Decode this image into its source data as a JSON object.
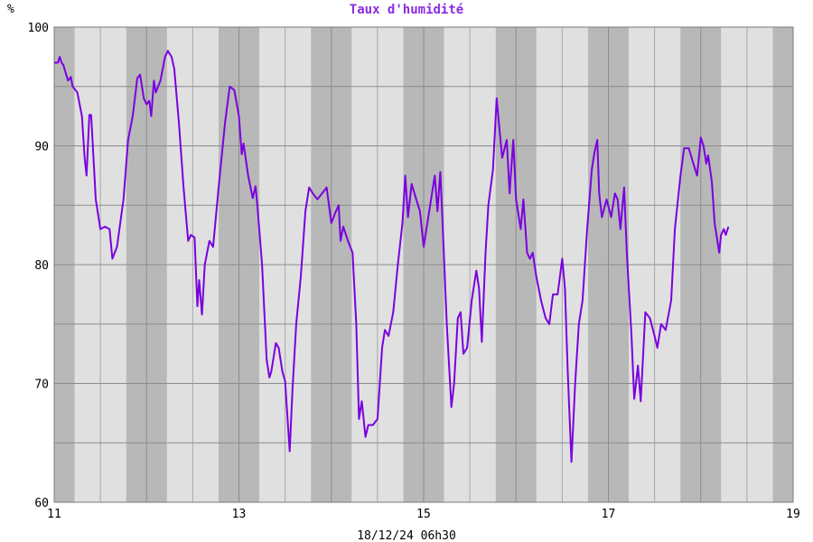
{
  "chart_data": {
    "type": "line",
    "title": "Taux d'humidité",
    "ylabel": "%",
    "footer": "18/12/24 06h30",
    "xlim": [
      11,
      19
    ],
    "ylim": [
      60,
      100
    ],
    "x_ticks": [
      11,
      13,
      15,
      17,
      19
    ],
    "y_ticks": [
      60,
      70,
      80,
      90,
      100
    ],
    "grid": true,
    "line_color": "#7a00e0",
    "night_band_color": "#b8b8b8",
    "day_band_color": "#e0e0e0",
    "night_bands": [
      [
        11.0,
        11.22
      ],
      [
        11.78,
        12.22
      ],
      [
        12.78,
        13.22
      ],
      [
        13.78,
        14.22
      ],
      [
        14.78,
        15.22
      ],
      [
        15.78,
        16.22
      ],
      [
        16.78,
        17.22
      ],
      [
        17.78,
        18.22
      ],
      [
        18.78,
        19.0
      ]
    ],
    "series": [
      {
        "values": [
          [
            11.0,
            97.0
          ],
          [
            11.04,
            97.0
          ],
          [
            11.06,
            97.5
          ],
          [
            11.08,
            97.0
          ],
          [
            11.1,
            96.8
          ],
          [
            11.13,
            96.0
          ],
          [
            11.15,
            95.5
          ],
          [
            11.18,
            95.8
          ],
          [
            11.2,
            95.0
          ],
          [
            11.25,
            94.5
          ],
          [
            11.3,
            92.5
          ],
          [
            11.33,
            89.0
          ],
          [
            11.35,
            87.5
          ],
          [
            11.38,
            92.6
          ],
          [
            11.4,
            92.6
          ],
          [
            11.45,
            85.5
          ],
          [
            11.5,
            83.0
          ],
          [
            11.55,
            83.2
          ],
          [
            11.6,
            83.0
          ],
          [
            11.63,
            80.5
          ],
          [
            11.68,
            81.5
          ],
          [
            11.75,
            85.5
          ],
          [
            11.8,
            90.5
          ],
          [
            11.85,
            92.5
          ],
          [
            11.9,
            95.7
          ],
          [
            11.93,
            96.0
          ],
          [
            11.97,
            94.0
          ],
          [
            12.0,
            93.5
          ],
          [
            12.03,
            93.8
          ],
          [
            12.05,
            92.5
          ],
          [
            12.08,
            95.5
          ],
          [
            12.1,
            94.5
          ],
          [
            12.15,
            95.5
          ],
          [
            12.2,
            97.5
          ],
          [
            12.23,
            98.0
          ],
          [
            12.27,
            97.5
          ],
          [
            12.3,
            96.5
          ],
          [
            12.35,
            92.0
          ],
          [
            12.4,
            86.5
          ],
          [
            12.45,
            82.0
          ],
          [
            12.48,
            82.5
          ],
          [
            12.52,
            82.3
          ],
          [
            12.55,
            76.5
          ],
          [
            12.57,
            78.7
          ],
          [
            12.6,
            75.8
          ],
          [
            12.63,
            80.0
          ],
          [
            12.68,
            82.0
          ],
          [
            12.72,
            81.5
          ],
          [
            12.78,
            86.5
          ],
          [
            12.85,
            92.0
          ],
          [
            12.9,
            95.0
          ],
          [
            12.95,
            94.7
          ],
          [
            13.0,
            92.5
          ],
          [
            13.03,
            89.3
          ],
          [
            13.05,
            90.2
          ],
          [
            13.1,
            87.5
          ],
          [
            13.15,
            85.6
          ],
          [
            13.18,
            86.6
          ],
          [
            13.2,
            85.0
          ],
          [
            13.25,
            80.0
          ],
          [
            13.3,
            72.0
          ],
          [
            13.33,
            70.5
          ],
          [
            13.35,
            71.0
          ],
          [
            13.4,
            73.4
          ],
          [
            13.43,
            73.0
          ],
          [
            13.47,
            71.0
          ],
          [
            13.5,
            70.2
          ],
          [
            13.55,
            64.3
          ],
          [
            13.58,
            69.5
          ],
          [
            13.62,
            75.0
          ],
          [
            13.67,
            79.0
          ],
          [
            13.72,
            84.5
          ],
          [
            13.76,
            86.5
          ],
          [
            13.8,
            86.0
          ],
          [
            13.85,
            85.5
          ],
          [
            13.9,
            86.0
          ],
          [
            13.95,
            86.5
          ],
          [
            14.0,
            83.5
          ],
          [
            14.05,
            84.5
          ],
          [
            14.08,
            85.0
          ],
          [
            14.1,
            82.0
          ],
          [
            14.13,
            83.2
          ],
          [
            14.18,
            82.0
          ],
          [
            14.23,
            81.0
          ],
          [
            14.27,
            75.0
          ],
          [
            14.3,
            67.0
          ],
          [
            14.33,
            68.5
          ],
          [
            14.37,
            65.5
          ],
          [
            14.4,
            66.5
          ],
          [
            14.45,
            66.5
          ],
          [
            14.5,
            67.0
          ],
          [
            14.55,
            73.0
          ],
          [
            14.58,
            74.5
          ],
          [
            14.62,
            74.0
          ],
          [
            14.67,
            76.0
          ],
          [
            14.72,
            80.0
          ],
          [
            14.77,
            83.5
          ],
          [
            14.8,
            87.5
          ],
          [
            14.83,
            84.0
          ],
          [
            14.87,
            86.8
          ],
          [
            14.92,
            85.5
          ],
          [
            14.96,
            84.5
          ],
          [
            15.0,
            81.5
          ],
          [
            15.05,
            84.0
          ],
          [
            15.08,
            85.5
          ],
          [
            15.12,
            87.5
          ],
          [
            15.15,
            84.5
          ],
          [
            15.18,
            87.8
          ],
          [
            15.2,
            84.5
          ],
          [
            15.25,
            75.0
          ],
          [
            15.3,
            68.0
          ],
          [
            15.33,
            70.0
          ],
          [
            15.37,
            75.5
          ],
          [
            15.4,
            76.0
          ],
          [
            15.43,
            72.5
          ],
          [
            15.47,
            73.0
          ],
          [
            15.52,
            77.0
          ],
          [
            15.57,
            79.5
          ],
          [
            15.6,
            78.0
          ],
          [
            15.63,
            73.5
          ],
          [
            15.67,
            81.0
          ],
          [
            15.7,
            85.0
          ],
          [
            15.75,
            88.0
          ],
          [
            15.79,
            94.0
          ],
          [
            15.82,
            91.5
          ],
          [
            15.85,
            89.0
          ],
          [
            15.9,
            90.5
          ],
          [
            15.93,
            86.0
          ],
          [
            15.97,
            90.5
          ],
          [
            16.0,
            85.5
          ],
          [
            16.05,
            83.0
          ],
          [
            16.08,
            85.5
          ],
          [
            16.12,
            81.0
          ],
          [
            16.15,
            80.5
          ],
          [
            16.18,
            81.0
          ],
          [
            16.22,
            79.0
          ],
          [
            16.27,
            77.0
          ],
          [
            16.32,
            75.5
          ],
          [
            16.36,
            75.0
          ],
          [
            16.4,
            77.5
          ],
          [
            16.45,
            77.5
          ],
          [
            16.5,
            80.5
          ],
          [
            16.53,
            78.0
          ],
          [
            16.56,
            71.0
          ],
          [
            16.6,
            63.4
          ],
          [
            16.64,
            70.0
          ],
          [
            16.68,
            75.0
          ],
          [
            16.72,
            77.0
          ],
          [
            16.77,
            83.0
          ],
          [
            16.82,
            88.0
          ],
          [
            16.85,
            89.5
          ],
          [
            16.88,
            90.5
          ],
          [
            16.9,
            86.0
          ],
          [
            16.93,
            84.0
          ],
          [
            16.98,
            85.5
          ],
          [
            17.03,
            84.0
          ],
          [
            17.07,
            86.0
          ],
          [
            17.1,
            85.5
          ],
          [
            17.13,
            83.0
          ],
          [
            17.17,
            86.5
          ],
          [
            17.2,
            81.0
          ],
          [
            17.25,
            74.0
          ],
          [
            17.28,
            68.7
          ],
          [
            17.32,
            71.5
          ],
          [
            17.35,
            68.5
          ],
          [
            17.4,
            76.0
          ],
          [
            17.45,
            75.5
          ],
          [
            17.5,
            74.0
          ],
          [
            17.53,
            73.0
          ],
          [
            17.57,
            75.0
          ],
          [
            17.62,
            74.5
          ],
          [
            17.68,
            77.0
          ],
          [
            17.72,
            83.0
          ],
          [
            17.78,
            87.5
          ],
          [
            17.82,
            89.8
          ],
          [
            17.87,
            89.8
          ],
          [
            17.92,
            88.5
          ],
          [
            17.96,
            87.5
          ],
          [
            18.0,
            90.7
          ],
          [
            18.03,
            90.0
          ],
          [
            18.06,
            88.5
          ],
          [
            18.08,
            89.2
          ],
          [
            18.12,
            87.0
          ],
          [
            18.15,
            83.5
          ],
          [
            18.2,
            81.0
          ],
          [
            18.22,
            82.5
          ],
          [
            18.25,
            83.0
          ],
          [
            18.27,
            82.5
          ],
          [
            18.3,
            83.2
          ]
        ]
      }
    ]
  }
}
